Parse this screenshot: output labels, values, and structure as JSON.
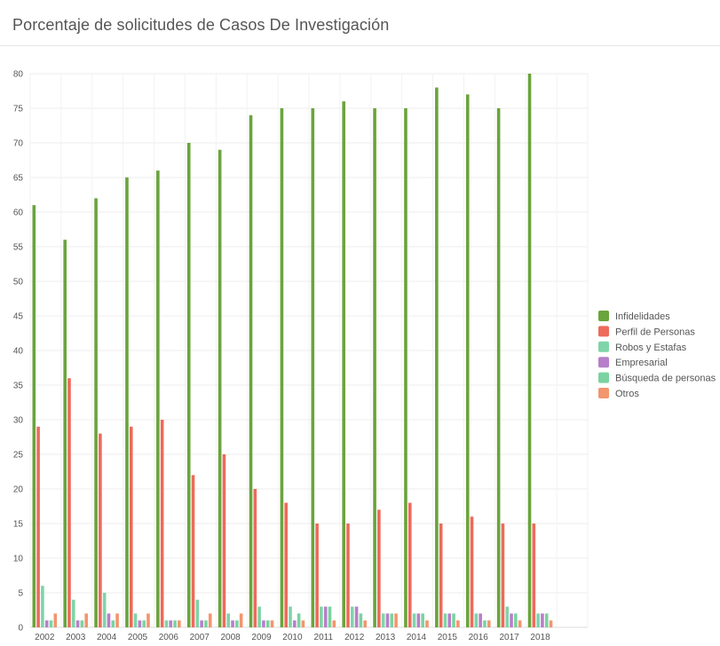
{
  "page": {
    "title": "Porcentaje de solicitudes de Casos De Investigación"
  },
  "chart_data": {
    "type": "bar",
    "title": "",
    "xlabel": "",
    "ylabel": "",
    "ylim": [
      0,
      80
    ],
    "yticks": [
      0,
      5,
      10,
      15,
      20,
      25,
      30,
      35,
      40,
      45,
      50,
      55,
      60,
      65,
      70,
      75,
      80
    ],
    "grid": true,
    "legend_position": "right",
    "categories": [
      "2002",
      "2003",
      "2004",
      "2005",
      "2006",
      "2007",
      "2008",
      "2009",
      "2010",
      "2011",
      "2012",
      "2013",
      "2014",
      "2015",
      "2016",
      "2017",
      "2018"
    ],
    "series": [
      {
        "name": "Infidelidades",
        "color": "#6aa43c",
        "values": [
          61,
          56,
          62,
          65,
          66,
          70,
          69,
          74,
          75,
          75,
          76,
          75,
          75,
          78,
          77,
          75,
          80
        ]
      },
      {
        "name": "Perfil de Personas",
        "color": "#ec6b5b",
        "values": [
          29,
          36,
          28,
          29,
          30,
          22,
          25,
          20,
          18,
          15,
          15,
          17,
          18,
          15,
          16,
          15,
          15
        ]
      },
      {
        "name": "Robos y Estafas",
        "color": "#7fd4a8",
        "values": [
          6,
          4,
          5,
          2,
          1,
          4,
          2,
          3,
          3,
          3,
          3,
          2,
          2,
          2,
          2,
          3,
          2
        ]
      },
      {
        "name": "Empresarial",
        "color": "#b77fc9",
        "values": [
          1,
          1,
          2,
          1,
          1,
          1,
          1,
          1,
          1,
          3,
          3,
          2,
          2,
          2,
          2,
          2,
          2
        ]
      },
      {
        "name": "Búsqueda de personas",
        "color": "#7ad3a0",
        "values": [
          1,
          1,
          1,
          1,
          1,
          1,
          1,
          1,
          2,
          3,
          2,
          2,
          2,
          2,
          1,
          2,
          2
        ]
      },
      {
        "name": "Otros",
        "color": "#f3956d",
        "values": [
          2,
          2,
          2,
          2,
          1,
          2,
          2,
          1,
          1,
          1,
          1,
          2,
          1,
          1,
          1,
          1,
          1
        ]
      }
    ]
  }
}
